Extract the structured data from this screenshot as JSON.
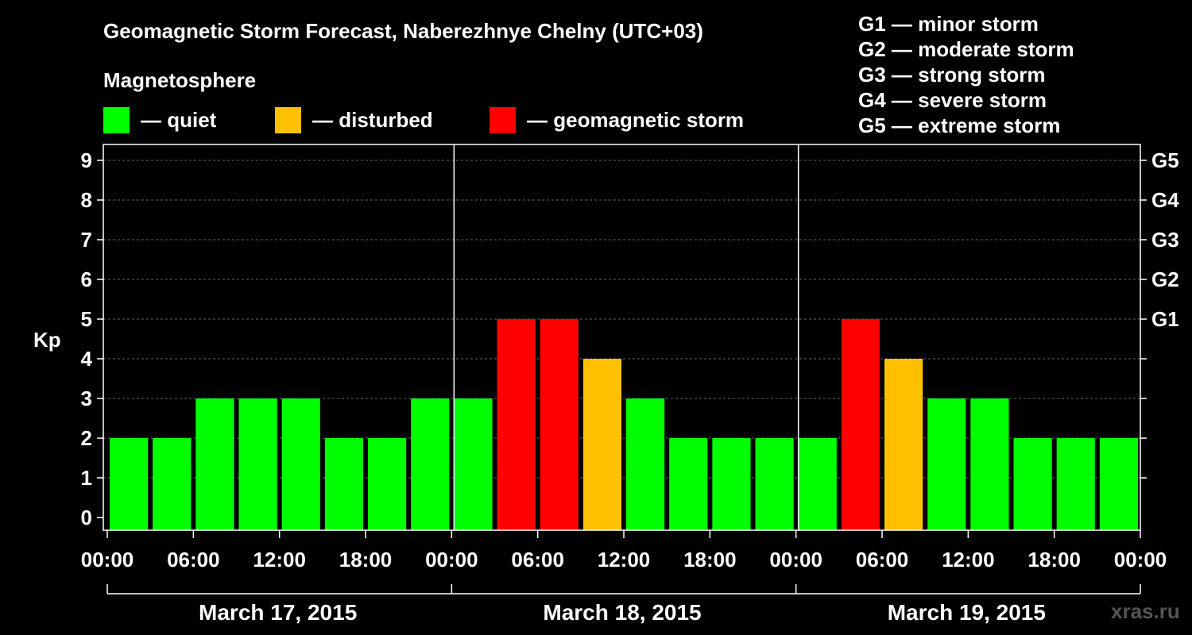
{
  "chart_data": {
    "type": "bar",
    "title": "Geomagnetic Storm Forecast, Naberezhnye Chelny (UTC+03)",
    "subtitle": "Magnetosphere",
    "ylabel": "Kp",
    "ylim": [
      0,
      9
    ],
    "yticks": [
      "0",
      "1",
      "2",
      "3",
      "4",
      "5",
      "6",
      "7",
      "8",
      "9"
    ],
    "right_ticks": [
      {
        "kp": 5,
        "label": "G1"
      },
      {
        "kp": 6,
        "label": "G2"
      },
      {
        "kp": 7,
        "label": "G3"
      },
      {
        "kp": 8,
        "label": "G4"
      },
      {
        "kp": 9,
        "label": "G5"
      }
    ],
    "xtick_labels": [
      "00:00",
      "06:00",
      "12:00",
      "18:00",
      "00:00",
      "06:00",
      "12:00",
      "18:00",
      "00:00",
      "06:00",
      "12:00",
      "18:00",
      "00:00"
    ],
    "days": [
      "March 17, 2015",
      "March 18, 2015",
      "March 19, 2015"
    ],
    "values": [
      2,
      2,
      3,
      3,
      3,
      2,
      2,
      3,
      3,
      5,
      5,
      4,
      3,
      2,
      2,
      2,
      2,
      5,
      4,
      3,
      3,
      2,
      2,
      2
    ],
    "status_colors": {
      "quiet": "#00ff00",
      "disturbed": "#ffc000",
      "storm": "#ff0000"
    },
    "legend": [
      {
        "label": "— quiet",
        "color": "#00ff00"
      },
      {
        "label": "— disturbed",
        "color": "#ffc000"
      },
      {
        "label": "— geomagnetic storm",
        "color": "#ff0000"
      }
    ],
    "storm_scale": [
      "G1 — minor storm",
      "G2 — moderate storm",
      "G3 — strong storm",
      "G4 — severe storm",
      "G5 — extreme storm"
    ]
  },
  "watermark": "xras.ru"
}
